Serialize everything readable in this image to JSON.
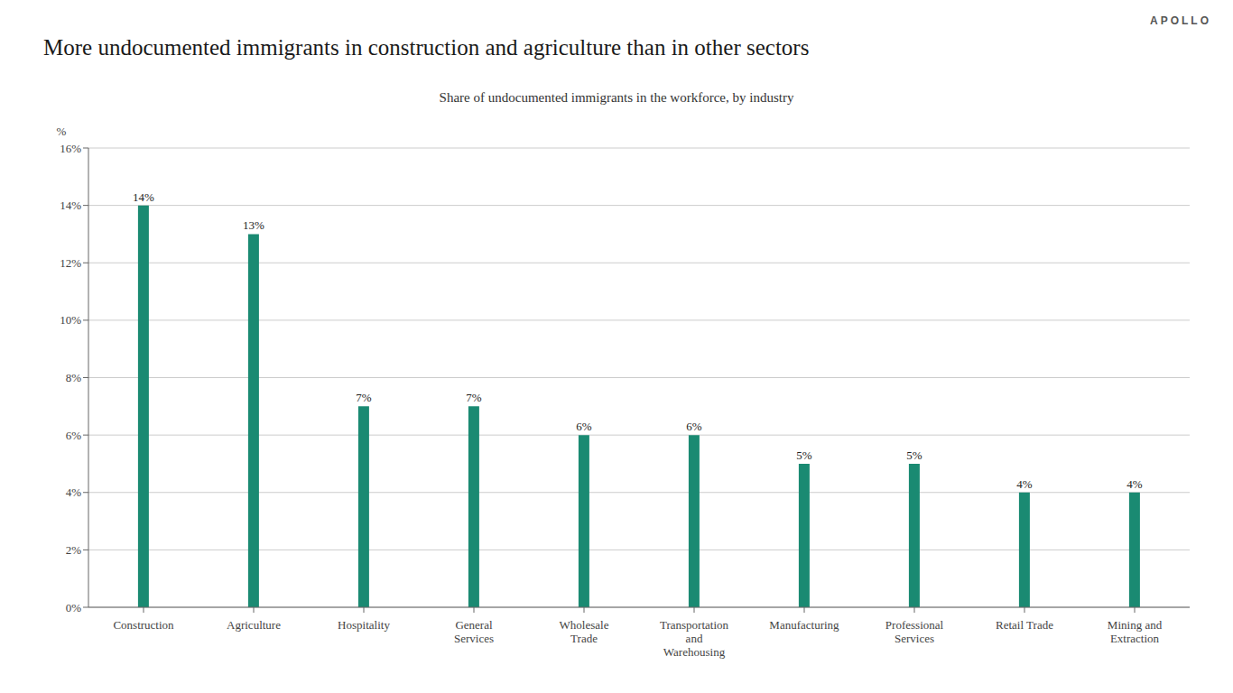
{
  "chart_data": {
    "type": "bar",
    "title": "More undocumented immigrants in construction and agriculture than in other sectors",
    "subtitle": "Share of undocumented immigrants in the workforce, by industry",
    "annotations": [
      "APOLLO"
    ],
    "ylabel": "%",
    "categories": [
      "Construction",
      "Agriculture",
      "Hospitality",
      "General\nServices",
      "Wholesale\nTrade",
      "Transportation\nand\nWarehousing",
      "Manufacturing",
      "Professional\nServices",
      "Retail Trade",
      "Mining and\nExtraction"
    ],
    "values": [
      14,
      13,
      7,
      7,
      6,
      6,
      5,
      5,
      4,
      4
    ],
    "value_labels": [
      "14%",
      "13%",
      "7%",
      "7%",
      "6%",
      "6%",
      "5%",
      "5%",
      "4%",
      "4%"
    ],
    "data_labels": true,
    "color": "#1a8a72",
    "ylim": [
      0,
      16
    ],
    "yticks": [
      {
        "value": 0,
        "label": "0%"
      },
      {
        "value": 2,
        "label": "2%"
      },
      {
        "value": 4,
        "label": "4%"
      },
      {
        "value": 6,
        "label": "6%"
      },
      {
        "value": 8,
        "label": "8%"
      },
      {
        "value": 10,
        "label": "10%"
      },
      {
        "value": 12,
        "label": "12%"
      },
      {
        "value": 14,
        "label": "14%"
      },
      {
        "value": 16,
        "label": "16%"
      }
    ],
    "grid": true
  }
}
